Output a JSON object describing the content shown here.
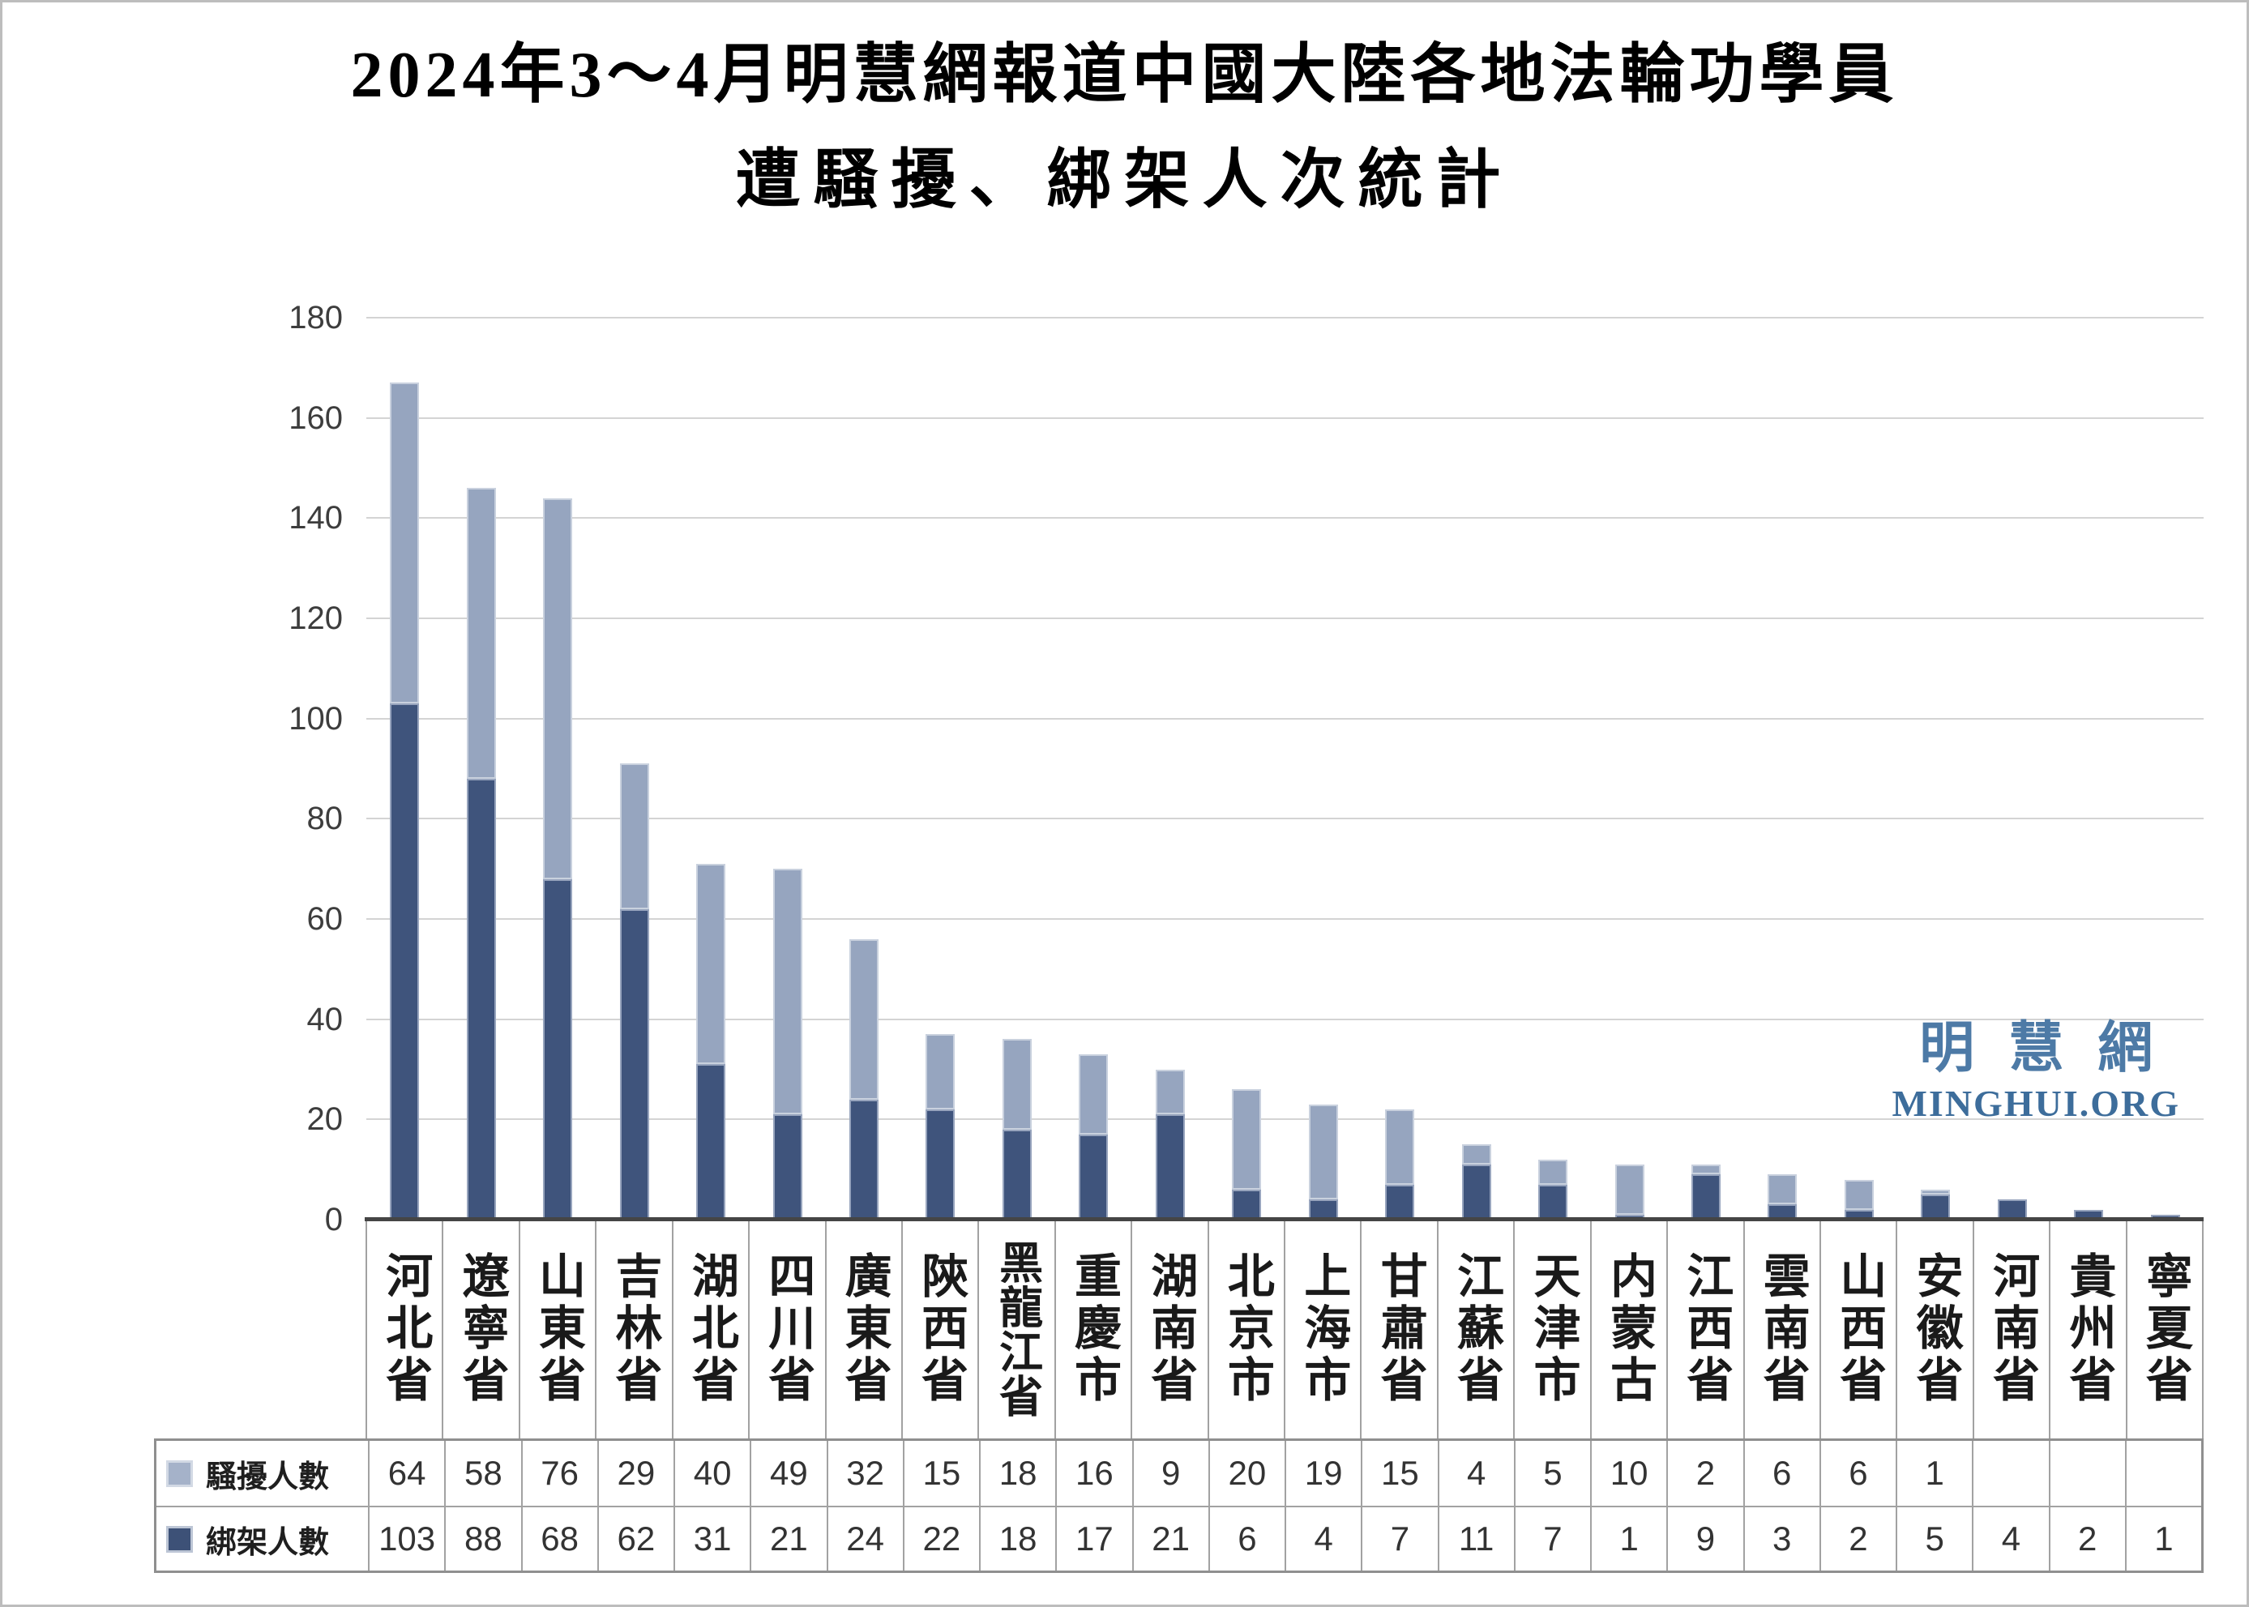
{
  "title": {
    "line1": "2024年3～4月明慧網報道中國大陸各地法輪功學員",
    "line2": "遭騷擾、綁架人次統計"
  },
  "watermark": {
    "cjk": "明慧網",
    "latin": "MINGHUI.ORG"
  },
  "chart_data": {
    "type": "bar",
    "stacked": true,
    "title": "2024年3～4月明慧網報道中國大陸各地法輪功學員遭騷擾、綁架人次統計",
    "categories": [
      "河北省",
      "遼寧省",
      "山東省",
      "吉林省",
      "湖北省",
      "四川省",
      "廣東省",
      "陝西省",
      "黑龍江省",
      "重慶市",
      "湖南省",
      "北京市",
      "上海市",
      "甘肅省",
      "江蘇省",
      "天津市",
      "内蒙古",
      "江西省",
      "雲南省",
      "山西省",
      "安徽省",
      "河南省",
      "貴州省",
      "寧夏省"
    ],
    "series": [
      {
        "name": "騷擾人數",
        "color": "#96a5bf",
        "border": "#c9d1de",
        "swatch": "#a5b2c9",
        "swatch_border": "#d2d9e4",
        "values": [
          64,
          58,
          76,
          29,
          40,
          49,
          32,
          15,
          18,
          16,
          9,
          20,
          19,
          15,
          4,
          5,
          10,
          2,
          6,
          6,
          1,
          null,
          null,
          null
        ]
      },
      {
        "name": "綁架人數",
        "color": "#3f547c",
        "border": "#97a4bd",
        "swatch": "#3d5177",
        "swatch_border": "#bcc5d5",
        "values": [
          103,
          88,
          68,
          62,
          31,
          21,
          24,
          22,
          18,
          17,
          21,
          6,
          4,
          7,
          11,
          7,
          1,
          9,
          3,
          2,
          5,
          4,
          2,
          1
        ]
      }
    ],
    "ylim": [
      0,
      180
    ],
    "yticks": [
      0,
      20,
      40,
      60,
      80,
      100,
      120,
      140,
      160,
      180
    ],
    "grid": "horizontal",
    "legend_position": "table-left-column",
    "axis_label_color": "#3d3d3d",
    "gridline_color": "#d4d4d4",
    "baseline_color": "#454545",
    "table_border_color": "#a2a2a2"
  }
}
